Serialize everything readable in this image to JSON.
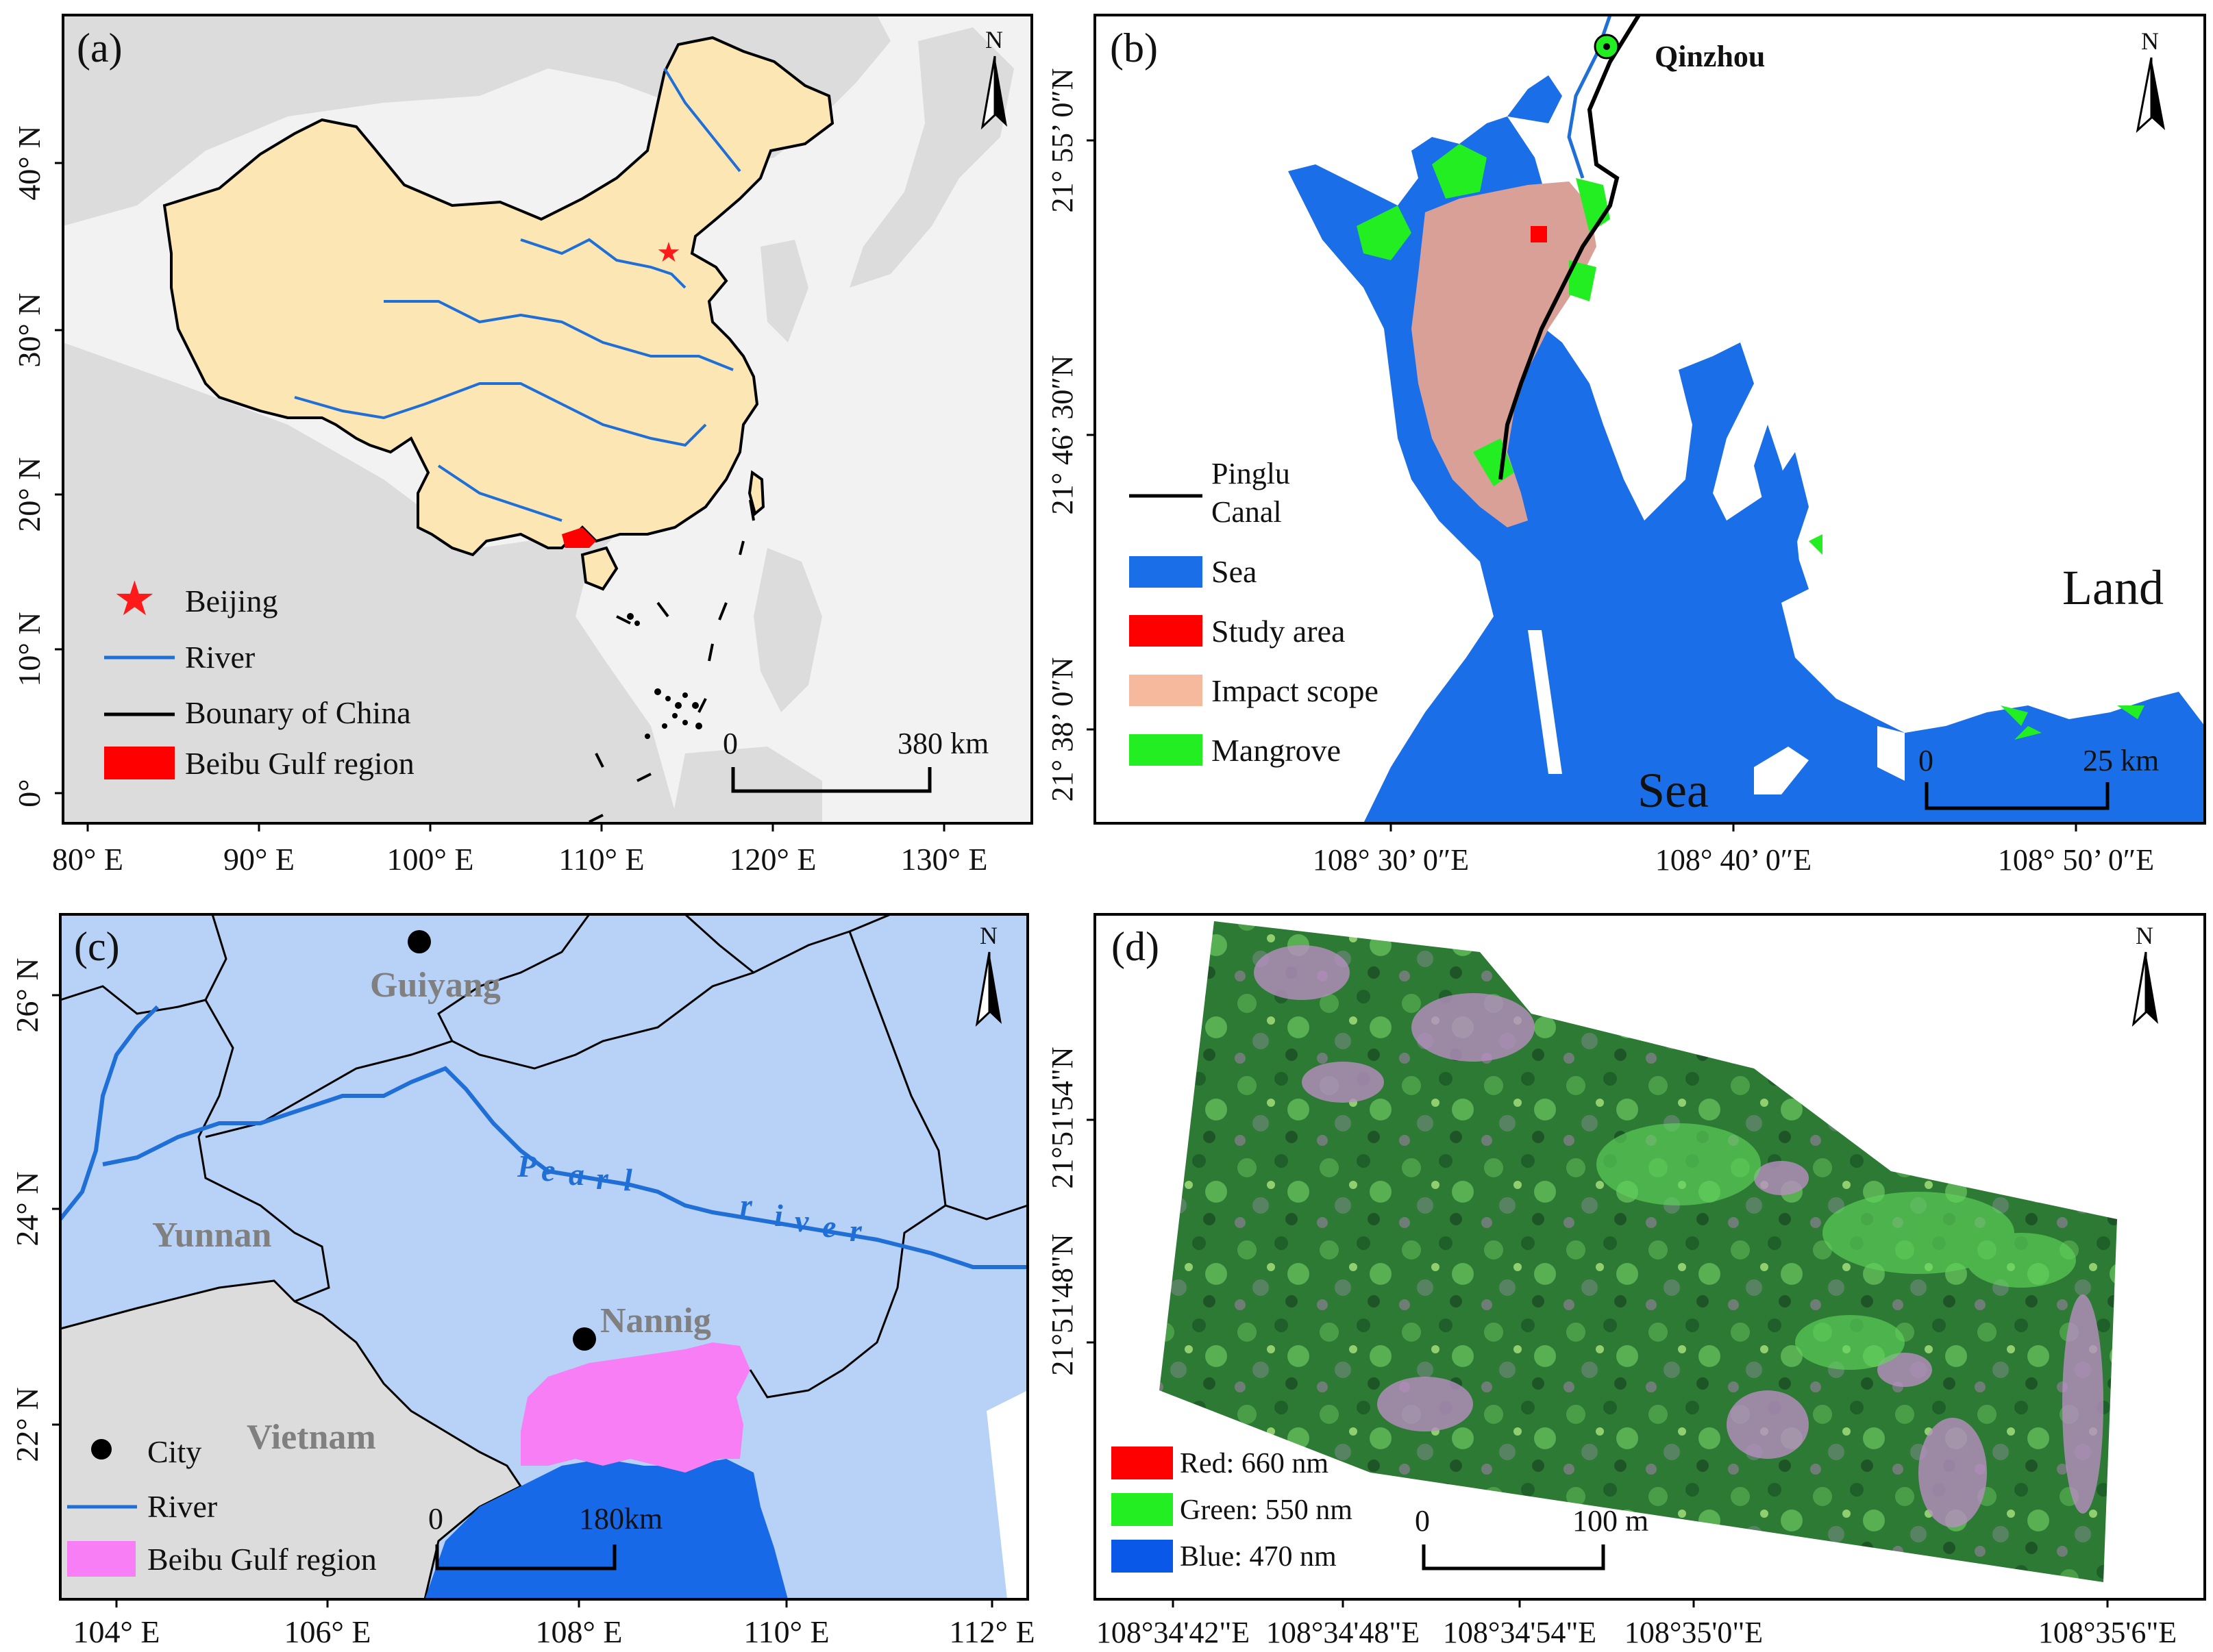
{
  "panel_a": {
    "label": "(a)",
    "north": "N",
    "x_ticks": [
      "80° E",
      "90° E",
      "100° E",
      "110° E",
      "120° E",
      "130° E"
    ],
    "y_ticks": [
      "0°",
      "10° N",
      "20° N",
      "30° N",
      "40° N"
    ],
    "legend": {
      "beijing": "Beijing",
      "river": "River",
      "boundary": "Bounary of China",
      "beibu": "Beibu Gulf region"
    },
    "scale": {
      "zero": "0",
      "end": "380 km"
    },
    "colors": {
      "china": "#fbe6b4",
      "land": "#dddddd",
      "sea": "#f2f2f2",
      "river": "#1f6fd6",
      "beibu": "#ff0000",
      "star": "#ff1a1a"
    }
  },
  "panel_b": {
    "label": "(b)",
    "north": "N",
    "city": "Qinzhou",
    "land_label": "Land",
    "sea_label": "Sea",
    "x_ticks": [
      "108°  30’ 0″E",
      "108°  40’ 0″E",
      "108°  50’ 0″E"
    ],
    "y_ticks": [
      "21°  38’ 0″N",
      "21°  46’ 30″N",
      "21°  55’ 0″N"
    ],
    "legend": {
      "canal_line1": "Pinglu",
      "canal_line2": "Canal",
      "sea": "Sea",
      "study": "Study area",
      "impact": "Impact scope",
      "mangrove": "Mangrove"
    },
    "scale": {
      "zero": "0",
      "end": "25 km"
    },
    "colors": {
      "sea": "#1a6fe8",
      "study": "#ff0000",
      "impact": "#d9a097",
      "mangrove": "#22ee22",
      "impact_legend": "#f6b99d"
    }
  },
  "panel_c": {
    "label": "(c)",
    "north": "N",
    "cities": {
      "guiyang": "Guiyang",
      "nanning": "Nannig"
    },
    "regions": {
      "yunnan": "Yunnan",
      "vietnam": "Vietnam"
    },
    "river_name": [
      "P",
      "e",
      "a",
      "r",
      "l",
      "r",
      "i",
      "v",
      "e",
      "r"
    ],
    "x_ticks": [
      "104° E",
      "106° E",
      "108° E",
      "110° E",
      "112° E"
    ],
    "y_ticks": [
      "22° N",
      "24° N",
      "26° N"
    ],
    "legend": {
      "city": "City",
      "river": "River",
      "beibu": "Beibu Gulf region"
    },
    "scale": {
      "zero": "0",
      "end": "180km"
    },
    "colors": {
      "china": "#b7d1f7",
      "vietnam": "#dcdcdc",
      "sea": "#1769e8",
      "beibu": "#f77ef5",
      "river": "#1f6fd6"
    }
  },
  "panel_d": {
    "label": "(d)",
    "north": "N",
    "x_ticks": [
      "108°34'42\"E",
      "108°34'48\"E",
      "108°34'54\"E",
      "108°35'0\"E",
      "108°35'6\"E"
    ],
    "y_ticks": [
      "21°51'48\"N",
      "21°51'54\"N"
    ],
    "legend": {
      "red": "Red: 660 nm",
      "green": "Green: 550 nm",
      "blue": "Blue: 470 nm"
    },
    "scale": {
      "zero": "0",
      "end": "100 m"
    },
    "colors": {
      "red": "#ff0000",
      "green": "#22ee22",
      "blue": "#0a58e8"
    }
  }
}
